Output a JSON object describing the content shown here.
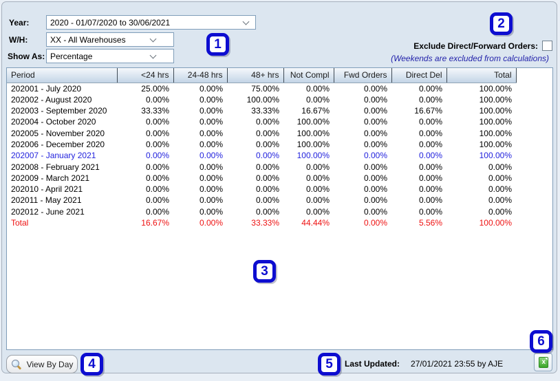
{
  "filters": {
    "year_label": "Year:",
    "year_value": "2020 - 01/07/2020 to 30/06/2021",
    "wh_label": "W/H:",
    "wh_value": "XX - All Warehouses",
    "show_as_label": "Show As:",
    "show_as_value": "Percentage"
  },
  "options": {
    "exclude_label": "Exclude Direct/Forward Orders:",
    "exclude_checked": false,
    "weekends_note": "(Weekends are excluded from calculations)"
  },
  "table": {
    "columns": [
      "Period",
      "<24 hrs",
      "24-48 hrs",
      "48+ hrs",
      "Not Compl",
      "Fwd Orders",
      "Direct Del",
      "Total"
    ],
    "rows": [
      {
        "period": "202001 - July 2020",
        "values": [
          "25.00%",
          "0.00%",
          "75.00%",
          "0.00%",
          "0.00%",
          "0.00%",
          "100.00%"
        ],
        "style": "normal"
      },
      {
        "period": "202002 - August 2020",
        "values": [
          "0.00%",
          "0.00%",
          "100.00%",
          "0.00%",
          "0.00%",
          "0.00%",
          "100.00%"
        ],
        "style": "normal"
      },
      {
        "period": "202003 - September 2020",
        "values": [
          "33.33%",
          "0.00%",
          "33.33%",
          "16.67%",
          "0.00%",
          "16.67%",
          "100.00%"
        ],
        "style": "normal"
      },
      {
        "period": "202004 - October 2020",
        "values": [
          "0.00%",
          "0.00%",
          "0.00%",
          "100.00%",
          "0.00%",
          "0.00%",
          "100.00%"
        ],
        "style": "normal"
      },
      {
        "period": "202005 - November 2020",
        "values": [
          "0.00%",
          "0.00%",
          "0.00%",
          "100.00%",
          "0.00%",
          "0.00%",
          "100.00%"
        ],
        "style": "normal"
      },
      {
        "period": "202006 - December 2020",
        "values": [
          "0.00%",
          "0.00%",
          "0.00%",
          "100.00%",
          "0.00%",
          "0.00%",
          "100.00%"
        ],
        "style": "normal"
      },
      {
        "period": "202007 - January 2021",
        "values": [
          "0.00%",
          "0.00%",
          "0.00%",
          "100.00%",
          "0.00%",
          "0.00%",
          "100.00%"
        ],
        "style": "current"
      },
      {
        "period": "202008 - February 2021",
        "values": [
          "0.00%",
          "0.00%",
          "0.00%",
          "0.00%",
          "0.00%",
          "0.00%",
          "0.00%"
        ],
        "style": "normal"
      },
      {
        "period": "202009 - March 2021",
        "values": [
          "0.00%",
          "0.00%",
          "0.00%",
          "0.00%",
          "0.00%",
          "0.00%",
          "0.00%"
        ],
        "style": "normal"
      },
      {
        "period": "202010 - April 2021",
        "values": [
          "0.00%",
          "0.00%",
          "0.00%",
          "0.00%",
          "0.00%",
          "0.00%",
          "0.00%"
        ],
        "style": "normal"
      },
      {
        "period": "202011 - May 2021",
        "values": [
          "0.00%",
          "0.00%",
          "0.00%",
          "0.00%",
          "0.00%",
          "0.00%",
          "0.00%"
        ],
        "style": "normal"
      },
      {
        "period": "202012 - June 2021",
        "values": [
          "0.00%",
          "0.00%",
          "0.00%",
          "0.00%",
          "0.00%",
          "0.00%",
          "0.00%"
        ],
        "style": "normal"
      },
      {
        "period": "Total",
        "values": [
          "16.67%",
          "0.00%",
          "33.33%",
          "44.44%",
          "0.00%",
          "5.56%",
          "100.00%"
        ],
        "style": "total"
      }
    ]
  },
  "footer": {
    "view_by_day_label": "View By Day",
    "last_updated_label": "Last Updated:",
    "last_updated_value": "27/01/2021 23:55 by AJE"
  },
  "icons": {
    "magnifier": "magnifier-icon",
    "excel_export": "excel-export-icon",
    "dropdown_chevron": "chevron-down-icon"
  },
  "callouts": [
    "1",
    "2",
    "3",
    "4",
    "5",
    "6"
  ],
  "colors": {
    "callout_blue": "#0d0dd0",
    "current_row_blue": "#2222dd",
    "total_row_red": "#ee1111",
    "note_blue": "#2222aa",
    "window_bg": "#dce6f0",
    "table_border": "#7f9db9"
  }
}
